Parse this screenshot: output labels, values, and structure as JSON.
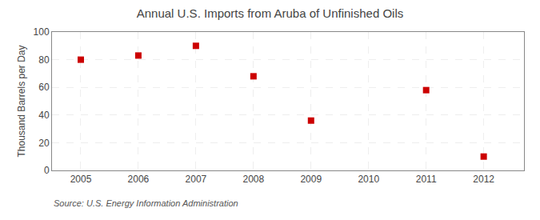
{
  "chart_data": {
    "type": "scatter",
    "title": "Annual U.S. Imports from Aruba of Unfinished Oils",
    "y_label": "Thousand Barrels per Day",
    "annotations": [
      "Source: U.S. Energy Information Administration"
    ],
    "x": [
      2005,
      2006,
      2007,
      2008,
      2009,
      2011,
      2012
    ],
    "values": [
      80,
      83,
      90,
      68,
      36,
      58,
      10
    ],
    "color": "#cc0000",
    "marker": "square",
    "xlim": [
      2004.5,
      2012.7
    ],
    "xticks": [
      2005,
      2006,
      2007,
      2008,
      2009,
      2010,
      2011,
      2012
    ],
    "ylim": [
      0,
      100
    ],
    "yticks": [
      0,
      20,
      40,
      60,
      80,
      100
    ],
    "grid": true
  }
}
